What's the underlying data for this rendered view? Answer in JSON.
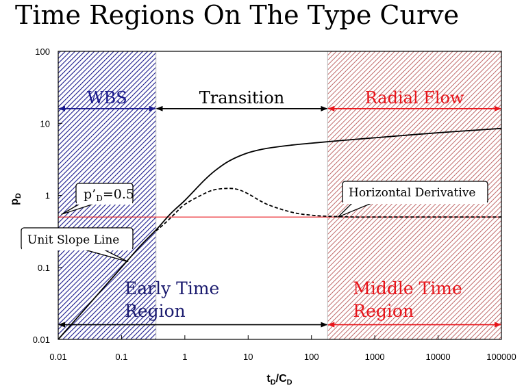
{
  "title": "Time Regions On The Type Curve",
  "chart_data": {
    "type": "line",
    "title": "Time Regions On The Type Curve",
    "xlabel": "tD/CD",
    "ylabel": "pD",
    "xscale": "log",
    "yscale": "log",
    "xlim": [
      0.01,
      100000
    ],
    "ylim": [
      0.01,
      100
    ],
    "x_tick_labels": [
      "0.01",
      "0.1",
      "1",
      "10",
      "100",
      "1000",
      "10000",
      "100000"
    ],
    "y_tick_labels": [
      "0.01",
      "0.1",
      "1",
      "10",
      "100"
    ],
    "regions": [
      {
        "label": "WBS",
        "x_start": 0.01,
        "x_end": 0.35,
        "color": "#1a1a8c",
        "fill": "blue-hatch"
      },
      {
        "label": "Transition",
        "x_start": 0.35,
        "x_end": 180,
        "color": "#000000",
        "fill": "none"
      },
      {
        "label": "Radial Flow",
        "x_start": 180,
        "x_end": 100000,
        "color": "#e8141a",
        "fill": "red-hatch"
      }
    ],
    "region_labels": {
      "early": [
        "Early Time",
        "Region"
      ],
      "middle": [
        "Middle Time",
        "Region"
      ]
    },
    "series": [
      {
        "style": "solid",
        "color": "#000000",
        "x": [
          0.01,
          0.05,
          0.1,
          0.2,
          0.35,
          0.6,
          1,
          2,
          3,
          5,
          10,
          20,
          50,
          100,
          200,
          500,
          1000,
          10000,
          100000
        ],
        "y": [
          0.01,
          0.05,
          0.1,
          0.2,
          0.33,
          0.56,
          0.85,
          1.6,
          2.2,
          3.0,
          3.9,
          4.5,
          5.0,
          5.3,
          5.6,
          6.0,
          6.3,
          7.4,
          8.5
        ]
      },
      {
        "style": "dashed",
        "color": "#000000",
        "x": [
          0.35,
          0.5,
          0.7,
          1,
          2,
          3,
          5,
          7,
          10,
          20,
          50,
          100,
          200,
          500,
          1000,
          10000,
          100000
        ],
        "y": [
          0.32,
          0.42,
          0.56,
          0.75,
          1.05,
          1.2,
          1.25,
          1.2,
          1.05,
          0.75,
          0.58,
          0.53,
          0.51,
          0.5,
          0.5,
          0.5,
          0.5
        ]
      }
    ],
    "reference_line": {
      "y": 0.5,
      "color": "#e8141a"
    },
    "callouts": [
      {
        "text_main": "p’",
        "text_sub": "D",
        "text_rest": "=0.5",
        "target": [
          0.01,
          0.5
        ]
      },
      {
        "text": "Unit Slope Line",
        "target": [
          0.12,
          0.12
        ]
      },
      {
        "text": "Horizontal Derivative",
        "target": [
          250,
          0.5
        ]
      }
    ],
    "colors": {
      "blue": "#1a1a8c",
      "red": "#e8141a",
      "black": "#000000"
    }
  }
}
